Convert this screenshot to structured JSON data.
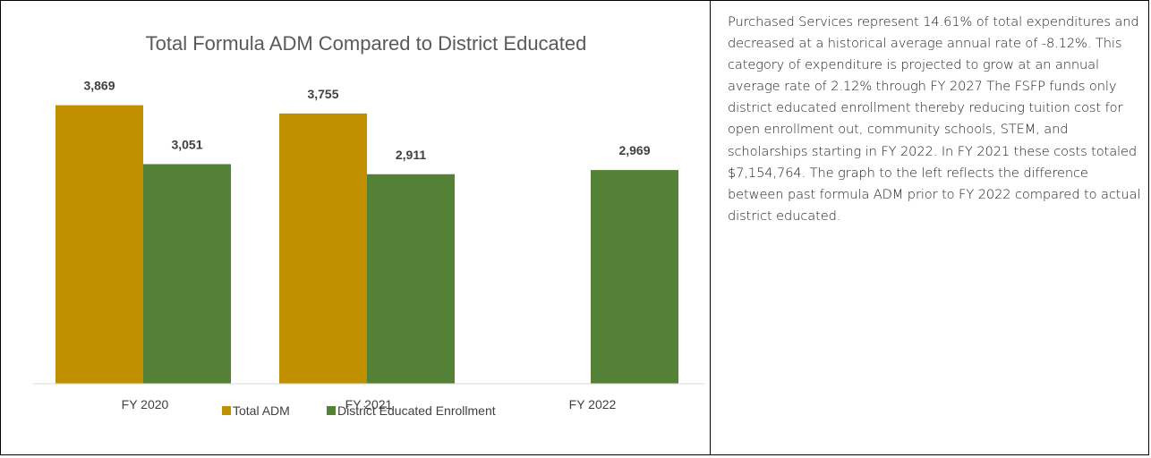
{
  "chart_data": {
    "type": "bar",
    "title": "Total Formula ADM Compared to District Educated",
    "categories": [
      "FY 2020",
      "FY 2021",
      "FY 2022"
    ],
    "series": [
      {
        "name": "Total ADM",
        "color": "#bf8f00",
        "values": [
          3869,
          3755,
          null
        ],
        "labels": [
          "3,869",
          "3,755",
          ""
        ]
      },
      {
        "name": "District Educated Enrollment",
        "color": "#538135",
        "values": [
          3051,
          2911,
          2969
        ],
        "labels": [
          "3,051",
          "2,911",
          "2,969"
        ]
      }
    ],
    "ylim": [
      0,
      4250
    ],
    "grid": false,
    "legend_position": "bottom"
  },
  "description_text": "Purchased Services represent 14.61% of total expenditures and  decreased at a historical average annual rate of -8.12%.  This category of expenditure is projected to grow at an annual average rate of 2.12% through FY 2027 The FSFP funds only district educated enrollment thereby reducing tuition cost for open enrollment out, community schools, STEM, and scholarships starting in FY 2022.   In FY 2021 these costs totaled $7,154,764.  The graph to the left reflects the difference between past formula ADM prior to FY 2022 compared to actual district educated."
}
